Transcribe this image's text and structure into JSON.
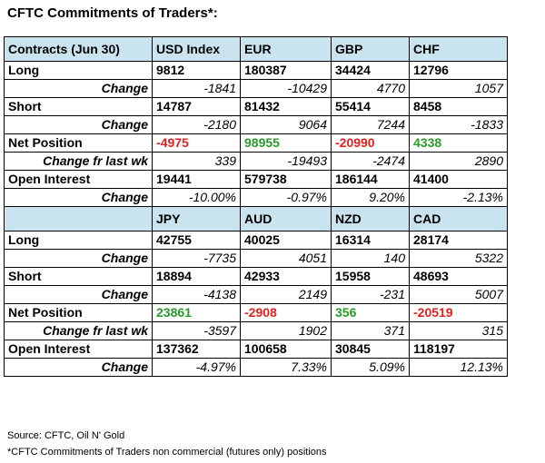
{
  "title": "CFTC Commitments of Traders*:",
  "table1": {
    "header": [
      "Contracts (Jun 30)",
      "USD Index",
      "EUR",
      "GBP",
      "CHF"
    ],
    "long": {
      "label": "Long",
      "values": [
        "9812",
        "180387",
        "34424",
        "12796"
      ]
    },
    "long_change": {
      "label": "Change",
      "values": [
        "-1841",
        "-10429",
        "4770",
        "1057"
      ]
    },
    "short": {
      "label": "Short",
      "values": [
        "14787",
        "81432",
        "55414",
        "8458"
      ]
    },
    "short_change": {
      "label": "Change",
      "values": [
        "-2180",
        "9064",
        "7244",
        "-1833"
      ]
    },
    "net": {
      "label": "Net Position",
      "values": [
        "-4975",
        "98955",
        "-20990",
        "4338"
      ]
    },
    "net_change": {
      "label": "Change fr last wk",
      "values": [
        "339",
        "-19493",
        "-2474",
        "2890"
      ]
    },
    "oi": {
      "label": "Open Interest",
      "values": [
        "19441",
        "579738",
        "186144",
        "41400"
      ]
    },
    "oi_change": {
      "label": "Change",
      "values": [
        "-10.00%",
        "-0.97%",
        "9.20%",
        "-2.13%"
      ]
    }
  },
  "table2": {
    "header": [
      "",
      "JPY",
      "AUD",
      "NZD",
      "CAD"
    ],
    "long": {
      "label": "Long",
      "values": [
        "42755",
        "40025",
        "16314",
        "28174"
      ]
    },
    "long_change": {
      "label": "Change",
      "values": [
        "-7735",
        "4051",
        "140",
        "5322"
      ]
    },
    "short": {
      "label": "Short",
      "values": [
        "18894",
        "42933",
        "15958",
        "48693"
      ]
    },
    "short_change": {
      "label": "Change",
      "values": [
        "-4138",
        "2149",
        "-231",
        "5007"
      ]
    },
    "net": {
      "label": "Net Position",
      "values": [
        "23861",
        "-2908",
        "356",
        "-20519"
      ]
    },
    "net_change": {
      "label": "Change fr last wk",
      "values": [
        "-3597",
        "1902",
        "371",
        "315"
      ]
    },
    "oi": {
      "label": "Open Interest",
      "values": [
        "137362",
        "100658",
        "30845",
        "118197"
      ]
    },
    "oi_change": {
      "label": "Change",
      "values": [
        "-4.97%",
        "7.33%",
        "5.09%",
        "12.13%"
      ]
    }
  },
  "source": "Source: CFTC, Oil N' Gold",
  "footnote": "*CFTC Commitments of Traders non commercial (futures only) positions",
  "colors": {
    "header_bg": "#c9e4ee",
    "negative": "#e62020",
    "positive": "#2a9a2a"
  }
}
